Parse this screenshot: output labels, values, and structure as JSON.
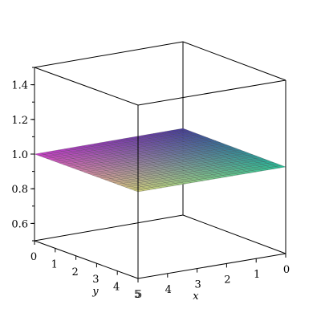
{
  "chart_data": {
    "type": "surface3d",
    "title": "",
    "x": {
      "label": "x",
      "range": [
        0,
        5
      ],
      "ticks": [
        5,
        4,
        3,
        2,
        1,
        0
      ]
    },
    "y": {
      "label": "y",
      "range": [
        0,
        5
      ],
      "ticks": [
        0,
        1,
        2,
        3,
        4,
        5
      ]
    },
    "z": {
      "label": "",
      "range": [
        0.5,
        1.5
      ],
      "ticks": [
        "0.6",
        "0.8",
        "1.0",
        "1.2",
        "1.4"
      ]
    },
    "surface": {
      "z_value": 1.0,
      "grid": 25,
      "description_colors": [
        "#c040c0",
        "#4040a0",
        "#30c0a0",
        "#c8c870"
      ]
    },
    "box": true
  }
}
